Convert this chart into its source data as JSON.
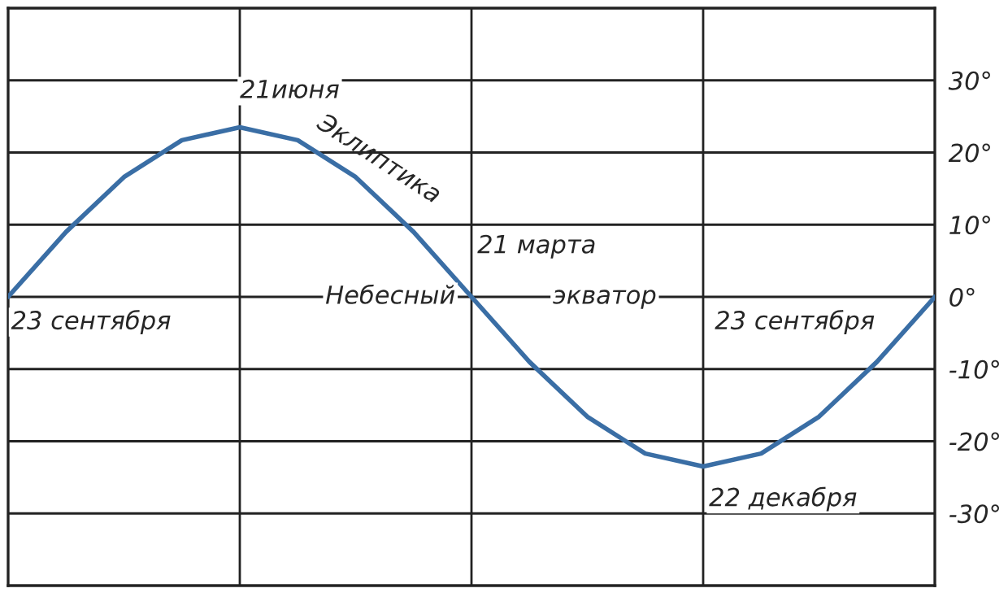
{
  "chart_data": {
    "type": "line",
    "categories": [
      null,
      null,
      null,
      null,
      null,
      null,
      null,
      null,
      null,
      null,
      null,
      null,
      null,
      null,
      null,
      null,
      null
    ],
    "series": [
      {
        "color": "#3a6ea5",
        "values": [
          0,
          9.0,
          16.6,
          21.7,
          23.5,
          21.7,
          16.6,
          9.0,
          0,
          -9.0,
          -16.6,
          -21.7,
          -23.5,
          -21.7,
          -16.6,
          -9.0,
          0
        ]
      }
    ],
    "ylim": [
      -40,
      40
    ],
    "yticks": [
      {
        "value": 30,
        "label": "30°"
      },
      {
        "value": 20,
        "label": "20°"
      },
      {
        "value": 10,
        "label": "10°"
      },
      {
        "value": 0,
        "label": "0°"
      },
      {
        "value": -10,
        "label": "-10°"
      },
      {
        "value": -20,
        "label": "-20°"
      },
      {
        "value": -30,
        "label": "-30°"
      }
    ],
    "tick_labels": "y",
    "grid": true,
    "marker": "none",
    "line_style": "solid",
    "annotations": [
      "21июня",
      "Эклиптика",
      "21 марта",
      "Небесный",
      "экватор",
      "23 сентября",
      "23 сентября",
      "22 декабря"
    ]
  }
}
